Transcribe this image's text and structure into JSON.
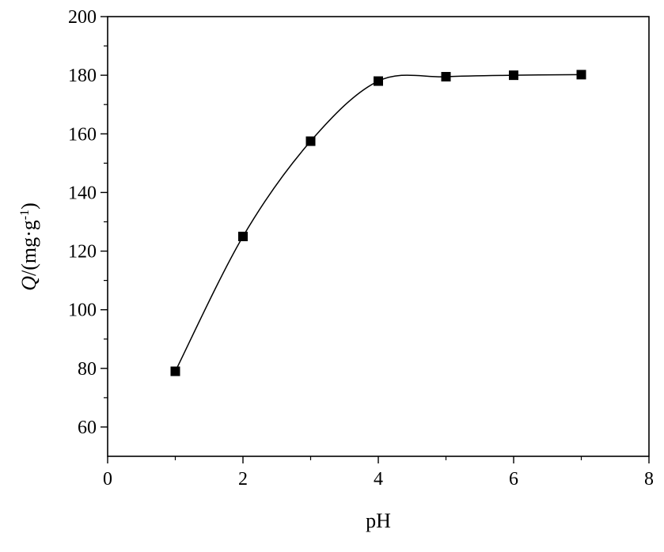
{
  "chart_data": {
    "type": "line",
    "title": "",
    "xlabel": "pH",
    "ylabel": {
      "italic": "Q",
      "rest": "/(mg·g",
      "sup": "-1",
      "close": ")"
    },
    "xlim": [
      0,
      8
    ],
    "ylim": [
      50,
      200
    ],
    "xticks": [
      "0",
      "2",
      "4",
      "6",
      "8"
    ],
    "yticks": [
      "60",
      "80",
      "100",
      "120",
      "140",
      "160",
      "180",
      "200"
    ],
    "grid": false,
    "legend": "none",
    "marker": "square",
    "line_color": "#000000",
    "series": [
      {
        "x": [
          1,
          2,
          3,
          4,
          5,
          6,
          7
        ],
        "y": [
          79,
          125,
          157.5,
          178,
          179.5,
          180,
          180.2
        ]
      }
    ]
  }
}
